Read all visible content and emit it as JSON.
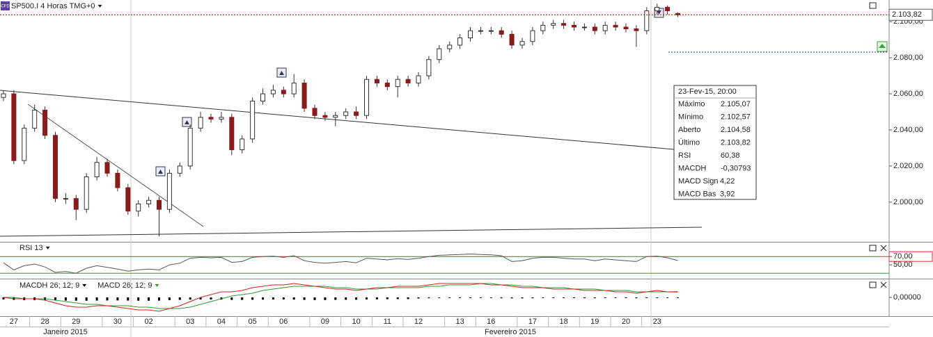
{
  "chart_data": [
    {
      "type": "candlestick",
      "title": "SP500.I 4 Horas TMG+0",
      "categories": [
        null,
        "27",
        null,
        null,
        "28",
        null,
        null,
        "29",
        null,
        null,
        null,
        "30",
        null,
        null,
        "02",
        null,
        null,
        null,
        "03",
        null,
        null,
        "04",
        null,
        null,
        "05",
        null,
        null,
        "06",
        null,
        null,
        null,
        "09",
        null,
        null,
        "10",
        null,
        null,
        "11",
        null,
        null,
        "12",
        null,
        null,
        null,
        "13",
        null,
        null,
        "16",
        null,
        null,
        null,
        "17",
        null,
        null,
        "18",
        null,
        null,
        "19",
        null,
        null,
        "20",
        null,
        null,
        "23",
        null,
        null
      ],
      "months": [
        "Janeiro 2015",
        "Fevereiro 2015"
      ],
      "open": [
        2058,
        2060,
        2023,
        2041,
        2051,
        2037,
        2002,
        2002,
        1996,
        2014,
        2022,
        2016,
        2008,
        1995,
        1999,
        2001,
        1996,
        2016,
        2020,
        2041,
        2047,
        2046,
        2047,
        2029,
        2035,
        2056,
        2060,
        2062,
        2060,
        2066,
        2052,
        2048,
        2047,
        2048,
        2050,
        2048,
        2068,
        2066,
        2064,
        2068,
        2066,
        2070,
        2079,
        2085,
        2087,
        2091,
        2095,
        2095,
        2095,
        2093,
        2087,
        2089,
        2095,
        2098,
        2099,
        2098,
        2097,
        2097,
        2095,
        2098,
        2097,
        2096,
        2095,
        2106,
        2108,
        2104.58
      ],
      "high": [
        2062,
        2062,
        2043,
        2054,
        2053,
        2039,
        2005,
        2004,
        2016,
        2025,
        2024,
        2018,
        2010,
        2001,
        2003,
        2003,
        2018,
        2022,
        2043,
        2050,
        2049,
        2050,
        2049,
        2037,
        2058,
        2063,
        2065,
        2064,
        2071,
        2068,
        2054,
        2050,
        2050,
        2052,
        2053,
        2070,
        2070,
        2068,
        2070,
        2070,
        2072,
        2081,
        2087,
        2089,
        2093,
        2097,
        2097,
        2097,
        2097,
        2095,
        2091,
        2097,
        2100,
        2101,
        2101,
        2100,
        2099,
        2099,
        2100,
        2100,
        2099,
        2098,
        2108,
        2110,
        2109,
        2105.07
      ],
      "low": [
        2056,
        2021,
        2021,
        2039,
        2035,
        2000,
        1999,
        1990,
        1994,
        2012,
        2014,
        2006,
        1993,
        1992,
        1997,
        1981,
        1994,
        2014,
        2018,
        2039,
        2044,
        2044,
        2026,
        2027,
        2033,
        2054,
        2058,
        2058,
        2058,
        2050,
        2046,
        2045,
        2042,
        2046,
        2046,
        2046,
        2064,
        2062,
        2058,
        2064,
        2064,
        2068,
        2077,
        2083,
        2085,
        2089,
        2093,
        2093,
        2091,
        2085,
        2085,
        2087,
        2093,
        2096,
        2096,
        2095,
        2095,
        2093,
        2093,
        2095,
        2094,
        2086,
        2093,
        2104,
        2104,
        2102.57
      ],
      "close": [
        2060,
        2023,
        2041,
        2051,
        2037,
        2002,
        2002,
        1996,
        2014,
        2022,
        2016,
        2008,
        1995,
        1999,
        2001,
        1996,
        2016,
        2020,
        2041,
        2047,
        2046,
        2047,
        2029,
        2035,
        2056,
        2060,
        2062,
        2060,
        2066,
        2052,
        2048,
        2047,
        2048,
        2050,
        2048,
        2068,
        2066,
        2064,
        2068,
        2066,
        2070,
        2079,
        2085,
        2087,
        2091,
        2095,
        2095,
        2095,
        2093,
        2087,
        2089,
        2095,
        2098,
        2099,
        2098,
        2097,
        2097,
        2095,
        2098,
        2097,
        2096,
        2095,
        2106,
        2108,
        2106,
        2103.82
      ],
      "last_price": {
        "value": 2103.82,
        "label": "2.103,82",
        "color": "#cc0000"
      },
      "up_color": "#ffffff",
      "down_color": "#8b1a1a",
      "ylim": [
        1978,
        2112
      ],
      "yticks": [
        {
          "value": 2000,
          "label": "2.000,00"
        },
        {
          "value": 2020,
          "label": "2.020,00"
        },
        {
          "value": 2040,
          "label": "2.040,00"
        },
        {
          "value": 2060,
          "label": "2.060,00"
        },
        {
          "value": 2080,
          "label": "2.080,00"
        },
        {
          "value": 2100,
          "label": "2.100,00"
        }
      ]
    },
    {
      "type": "line",
      "title": "RSI 13",
      "series": [
        {
          "color": "#555555",
          "values": [
            55,
            38,
            48,
            52,
            45,
            32,
            34,
            30,
            42,
            48,
            44,
            40,
            35,
            38,
            40,
            38,
            50,
            54,
            66,
            68,
            67,
            68,
            56,
            58,
            68,
            70,
            71,
            68,
            72,
            60,
            56,
            54,
            56,
            58,
            55,
            66,
            64,
            62,
            65,
            63,
            66,
            70,
            73,
            74,
            75,
            76,
            75,
            74,
            72,
            58,
            60,
            66,
            68,
            68,
            66,
            64,
            64,
            60,
            64,
            62,
            60,
            58,
            70,
            71,
            67,
            60.38
          ]
        }
      ],
      "hlines": [
        {
          "value": 70,
          "color": "#cc3333"
        },
        {
          "value": 30,
          "color": "#339933"
        }
      ],
      "ylim": [
        22,
        102
      ],
      "yticks": [
        {
          "value": 70,
          "label": "70,00"
        },
        {
          "value": 50,
          "label": "50,00"
        }
      ]
    },
    {
      "type": "macd",
      "series": [
        {
          "name": "MACDH 26; 12; 9",
          "color": "#000000",
          "style": "bars",
          "values": [
            -1.5,
            -1.8,
            -2,
            -2,
            -2,
            -2.2,
            -2.3,
            -2.4,
            -2.4,
            -2.3,
            -2.2,
            -2.2,
            -2.3,
            -2.4,
            -2.4,
            -2.3,
            -2,
            -1.8,
            -1.6,
            -1.5,
            -1.5,
            -1.6,
            -1.8,
            -1.8,
            -1.7,
            -1.6,
            -1.5,
            -1.5,
            -1.6,
            -1.8,
            -1.9,
            -1.9,
            -1.8,
            -1.7,
            -1.7,
            -1.5,
            -1.4,
            -1.3,
            -1.2,
            -1.2,
            -0.8,
            -0.6,
            -0.5,
            -0.5,
            -0.4,
            -0.4,
            -0.4,
            -0.5,
            -0.6,
            -0.7,
            -0.7,
            -0.6,
            -0.5,
            -0.5,
            -0.5,
            -0.5,
            -0.6,
            -0.6,
            -0.5,
            -0.5,
            -0.5,
            -0.6,
            -0.4,
            -0.3,
            -0.3,
            -0.30793
          ]
        },
        {
          "name": "MACD 26; 12; 9",
          "color": "#2e9a2e",
          "style": "line",
          "values": [
            0,
            0,
            -1,
            -1,
            -1,
            -2,
            -3,
            -4,
            -5,
            -5,
            -6,
            -6,
            -6,
            -7,
            -7,
            -8,
            -8,
            -8,
            -7,
            -5,
            -3,
            -1,
            1,
            2,
            3,
            5,
            6,
            7,
            8,
            8,
            8,
            8,
            7,
            7,
            6,
            6,
            6,
            7,
            7,
            7,
            7,
            8,
            8,
            9,
            9,
            9,
            10,
            10,
            9,
            9,
            8,
            8,
            7,
            7,
            7,
            6,
            6,
            6,
            5,
            5,
            5,
            4,
            4,
            4,
            4,
            4.22
          ]
        },
        {
          "color": "#d02020",
          "style": "line",
          "values": [
            0,
            -1,
            -1,
            -1,
            -2,
            -4,
            -6,
            -7,
            -7,
            -6,
            -6,
            -7,
            -8,
            -9,
            -9,
            -10,
            -8,
            -6,
            -3,
            0,
            2,
            4,
            4,
            5,
            7,
            8,
            9,
            9,
            10,
            9,
            8,
            7,
            6,
            6,
            5,
            6,
            7,
            7,
            8,
            8,
            8,
            9,
            10,
            10,
            10,
            10,
            10,
            9,
            9,
            8,
            7,
            7,
            7,
            6,
            6,
            6,
            5,
            5,
            5,
            4,
            4,
            3,
            4,
            5,
            4,
            3.92
          ]
        }
      ],
      "ylim": [
        -12.5,
        12.5
      ],
      "yticks": [
        {
          "value": 0,
          "label": "0,00000"
        }
      ]
    }
  ],
  "info": {
    "title": "23-Fev-15, 20:00",
    "rows": [
      [
        "Máximo",
        "2.105,07"
      ],
      [
        "Mínimo",
        "2.102,57"
      ],
      [
        "Aberto",
        "2.104,58"
      ],
      [
        "Último",
        "2.103,82"
      ],
      [
        "RSI",
        "60,38"
      ],
      [
        "MACDH",
        "-0,30793"
      ],
      [
        "MACD Sign",
        "4,22"
      ],
      [
        "MACD Bas",
        "3,92"
      ]
    ]
  }
}
